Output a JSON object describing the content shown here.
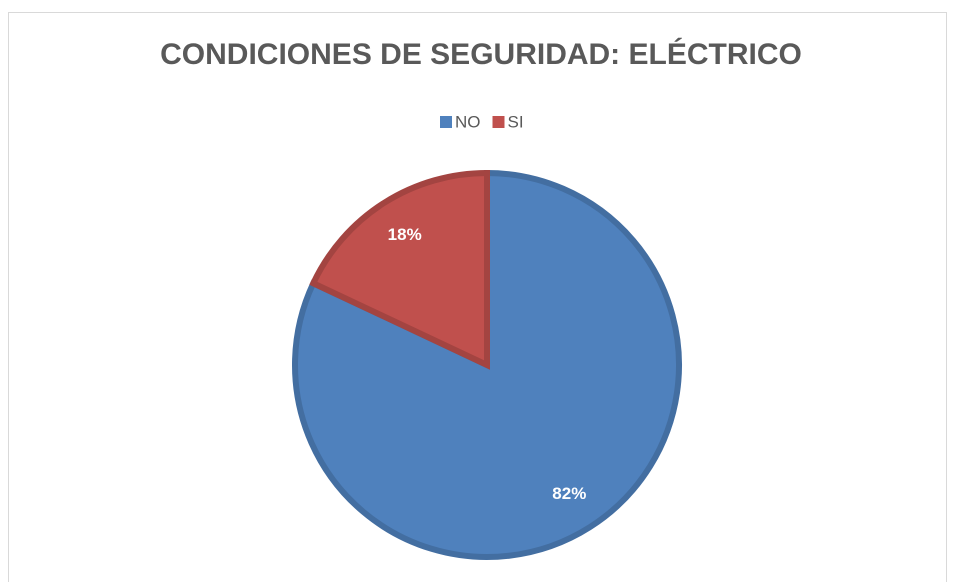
{
  "chart_data": {
    "type": "pie",
    "title": "CONDICIONES DE SEGURIDAD: ELÉCTRICO",
    "categories": [
      "NO",
      "SI"
    ],
    "values": [
      82,
      18
    ],
    "value_labels": [
      "82%",
      "18%"
    ],
    "colors": [
      "#4f81bd",
      "#c0504d"
    ],
    "legend": "top"
  }
}
